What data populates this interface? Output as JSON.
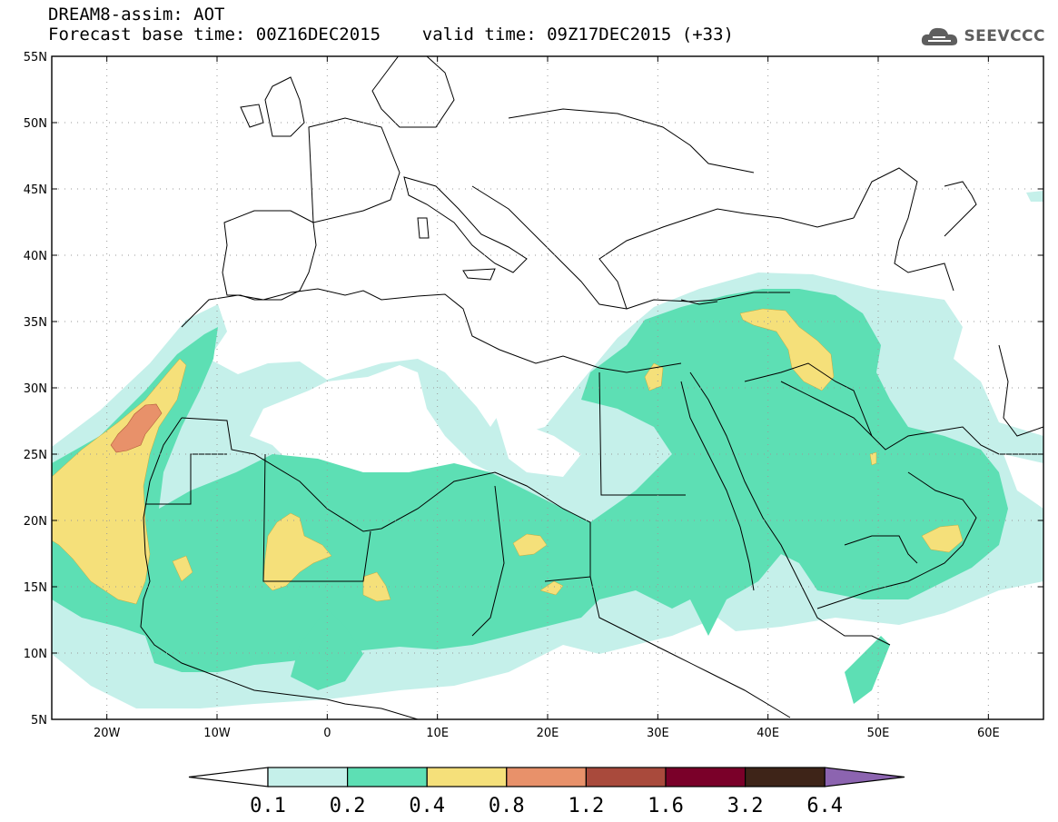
{
  "title_line1": "DREAM8-assim: AOT",
  "title_line2": "Forecast base time: 00Z16DEC2015    valid time: 09Z17DEC2015 (+33)",
  "logo": {
    "text": "SEEVCCC",
    "icon": "cloud-icon"
  },
  "map": {
    "lon_range": [
      -25,
      65
    ],
    "lat_range": [
      5,
      55
    ],
    "lat_labels": [
      "55N",
      "50N",
      "45N",
      "40N",
      "35N",
      "30N",
      "25N",
      "20N",
      "15N",
      "10N",
      "5N"
    ],
    "lon_labels": [
      "20W",
      "10W",
      "0",
      "10E",
      "20E",
      "30E",
      "40E",
      "50E",
      "60E"
    ],
    "grid": "dotted",
    "projection": "latlon"
  },
  "colorbar": {
    "labels": [
      "0.1",
      "0.2",
      "0.4",
      "0.8",
      "1.2",
      "1.6",
      "3.2",
      "6.4"
    ],
    "colors": [
      "#ffffff",
      "#c5f0ea",
      "#5ddfb4",
      "#f5e07a",
      "#e8916a",
      "#a94a3c",
      "#7a0029",
      "#3e2418",
      "#8c64b0"
    ]
  },
  "colors": {
    "level1": "#c5f0ea",
    "level2": "#5ddfb4",
    "level3": "#f5e07a",
    "level4": "#e8916a",
    "coast": "#000000"
  }
}
